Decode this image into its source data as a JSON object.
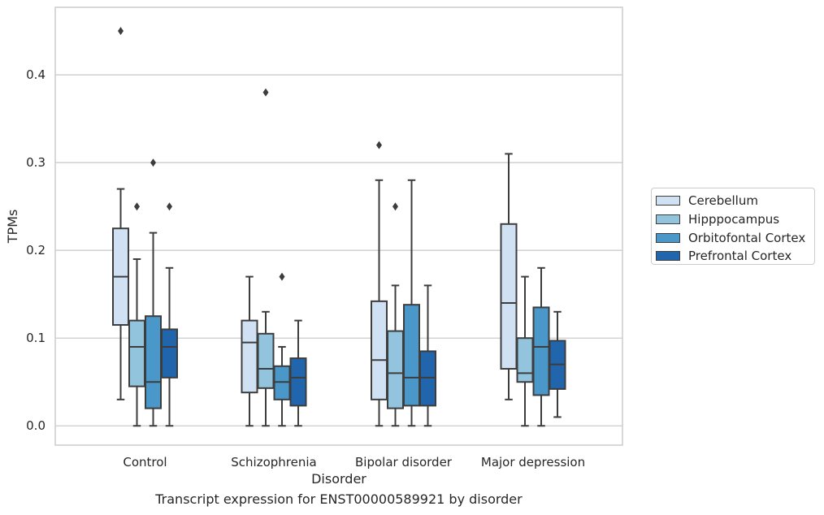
{
  "caption": "Transcript expression for ENST00000589921 by disorder",
  "chart_data": {
    "type": "box",
    "xlabel": "Disorder",
    "ylabel": "TPMs",
    "ylim": [
      -0.022,
      0.477
    ],
    "yticks": [
      "0.0",
      "0.1",
      "0.2",
      "0.3",
      "0.4"
    ],
    "grid": "horizontal",
    "legend_position": "outside-right",
    "categories": [
      "Control",
      "Schizophrenia",
      "Bipolar disorder",
      "Major depression"
    ],
    "series": [
      {
        "name": "Cerebellum",
        "color": "#cfe1f2",
        "boxes": [
          {
            "q1": 0.115,
            "median": 0.17,
            "q3": 0.225,
            "whisker_low": 0.03,
            "whisker_high": 0.27,
            "outliers": [
              0.45
            ]
          },
          {
            "q1": 0.038,
            "median": 0.095,
            "q3": 0.12,
            "whisker_low": 0.0,
            "whisker_high": 0.17,
            "outliers": []
          },
          {
            "q1": 0.03,
            "median": 0.075,
            "q3": 0.142,
            "whisker_low": 0.0,
            "whisker_high": 0.28,
            "outliers": [
              0.32
            ]
          },
          {
            "q1": 0.065,
            "median": 0.14,
            "q3": 0.23,
            "whisker_low": 0.03,
            "whisker_high": 0.31,
            "outliers": []
          }
        ]
      },
      {
        "name": "Hipppocampus",
        "color": "#93c4de",
        "boxes": [
          {
            "q1": 0.045,
            "median": 0.09,
            "q3": 0.12,
            "whisker_low": 0.0,
            "whisker_high": 0.19,
            "outliers": [
              0.25
            ]
          },
          {
            "q1": 0.043,
            "median": 0.065,
            "q3": 0.105,
            "whisker_low": 0.0,
            "whisker_high": 0.13,
            "outliers": [
              0.38
            ]
          },
          {
            "q1": 0.02,
            "median": 0.06,
            "q3": 0.108,
            "whisker_low": 0.0,
            "whisker_high": 0.16,
            "outliers": [
              0.25
            ]
          },
          {
            "q1": 0.05,
            "median": 0.06,
            "q3": 0.1,
            "whisker_low": 0.0,
            "whisker_high": 0.17,
            "outliers": []
          }
        ]
      },
      {
        "name": "Orbitofontal Cortex",
        "color": "#4a98c9",
        "boxes": [
          {
            "q1": 0.02,
            "median": 0.05,
            "q3": 0.125,
            "whisker_low": 0.0,
            "whisker_high": 0.22,
            "outliers": [
              0.3
            ]
          },
          {
            "q1": 0.03,
            "median": 0.05,
            "q3": 0.068,
            "whisker_low": 0.0,
            "whisker_high": 0.09,
            "outliers": [
              0.17
            ]
          },
          {
            "q1": 0.023,
            "median": 0.055,
            "q3": 0.138,
            "whisker_low": 0.0,
            "whisker_high": 0.28,
            "outliers": []
          },
          {
            "q1": 0.035,
            "median": 0.09,
            "q3": 0.135,
            "whisker_low": 0.0,
            "whisker_high": 0.18,
            "outliers": []
          }
        ]
      },
      {
        "name": "Prefrontal Cortex",
        "color": "#2166ac",
        "boxes": [
          {
            "q1": 0.055,
            "median": 0.09,
            "q3": 0.11,
            "whisker_low": 0.0,
            "whisker_high": 0.18,
            "outliers": [
              0.25
            ]
          },
          {
            "q1": 0.023,
            "median": 0.055,
            "q3": 0.077,
            "whisker_low": 0.0,
            "whisker_high": 0.12,
            "outliers": []
          },
          {
            "q1": 0.023,
            "median": 0.055,
            "q3": 0.085,
            "whisker_low": 0.0,
            "whisker_high": 0.16,
            "outliers": []
          },
          {
            "q1": 0.042,
            "median": 0.07,
            "q3": 0.097,
            "whisker_low": 0.01,
            "whisker_high": 0.13,
            "outliers": []
          }
        ]
      }
    ]
  }
}
